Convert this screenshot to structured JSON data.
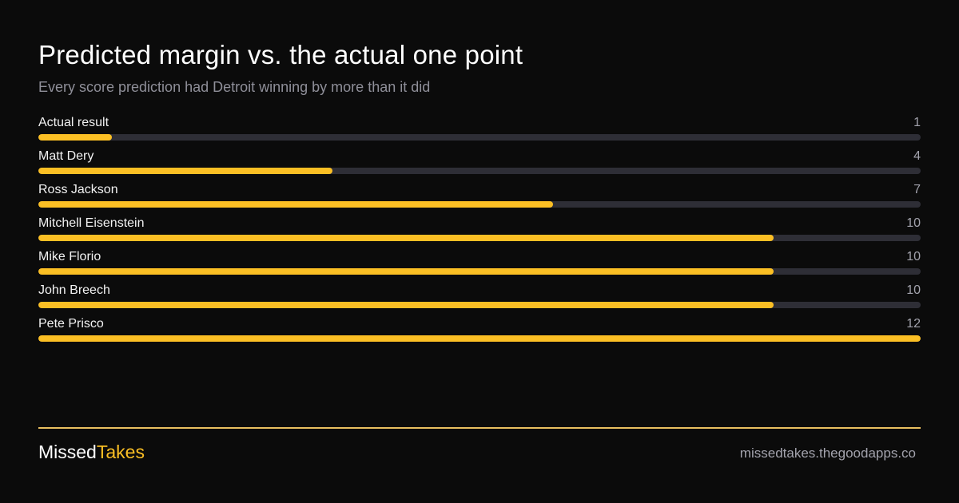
{
  "header": {
    "title": "Predicted margin vs. the actual one point",
    "subtitle": "Every score prediction had Detroit winning by more than it did"
  },
  "chart_data": {
    "type": "bar",
    "orientation": "horizontal",
    "title": "Predicted margin vs. the actual one point",
    "subtitle": "Every score prediction had Detroit winning by more than it did",
    "xlim": [
      0,
      12
    ],
    "grid": false,
    "categories": [
      "Actual result",
      "Matt Dery",
      "Ross Jackson",
      "Mitchell Eisenstein",
      "Mike Florio",
      "John Breech",
      "Pete Prisco"
    ],
    "values": [
      1,
      4,
      7,
      10,
      10,
      10,
      12
    ],
    "colors": {
      "bar": "#fbbf24",
      "track": "#2e2e36"
    }
  },
  "footer": {
    "brand_part1": "Missed",
    "brand_part2": "Takes",
    "site": "missedtakes.thegoodapps.co",
    "accent": "#fbbf24"
  }
}
